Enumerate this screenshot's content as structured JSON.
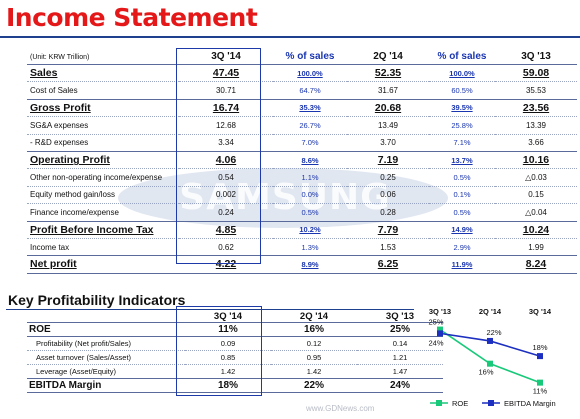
{
  "title": "Income Statement",
  "income_table": {
    "unit": "(Unit: KRW Trillion)",
    "headers": [
      "3Q '14",
      "% of sales",
      "2Q '14",
      "% of sales",
      "3Q '13"
    ],
    "rows": [
      {
        "label": "Sales",
        "q3_14": "47.45",
        "pct_q3_14": "100.0%",
        "q2_14": "52.35",
        "pct_q2_14": "100.0%",
        "q3_13": "59.08",
        "style": "bold"
      },
      {
        "label": "Cost of Sales",
        "q3_14": "30.71",
        "pct_q3_14": "64.7%",
        "q2_14": "31.67",
        "pct_q2_14": "60.5%",
        "q3_13": "35.53",
        "style": "normal"
      },
      {
        "label": "Gross Profit",
        "q3_14": "16.74",
        "pct_q3_14": "35.3%",
        "q2_14": "20.68",
        "pct_q2_14": "39.5%",
        "q3_13": "23.56",
        "style": "bold"
      },
      {
        "label": "SG&A expenses",
        "q3_14": "12.68",
        "pct_q3_14": "26.7%",
        "q2_14": "13.49",
        "pct_q2_14": "25.8%",
        "q3_13": "13.39",
        "style": "normal"
      },
      {
        "label": "- R&D expenses",
        "q3_14": "3.34",
        "pct_q3_14": "7.0%",
        "q2_14": "3.70",
        "pct_q2_14": "7.1%",
        "q3_13": "3.66",
        "style": "sub"
      },
      {
        "label": "Operating Profit",
        "q3_14": "4.06",
        "pct_q3_14": "8.6%",
        "q2_14": "7.19",
        "pct_q2_14": "13.7%",
        "q3_13": "10.16",
        "style": "bold"
      },
      {
        "label": "Other non-operating income/expense",
        "q3_14": "0.54",
        "pct_q3_14": "1.1%",
        "q2_14": "0.25",
        "pct_q2_14": "0.5%",
        "q3_13": "△0.03",
        "style": "normal"
      },
      {
        "label": "Equity method gain/loss",
        "q3_14": "0.002",
        "pct_q3_14": "0.0%",
        "q2_14": "0.06",
        "pct_q2_14": "0.1%",
        "q3_13": "0.15",
        "style": "normal"
      },
      {
        "label": "Finance income/expense",
        "q3_14": "0.24",
        "pct_q3_14": "0.5%",
        "q2_14": "0.28",
        "pct_q2_14": "0.5%",
        "q3_13": "△0.04",
        "style": "normal"
      },
      {
        "label": "Profit Before Income Tax",
        "q3_14": "4.85",
        "pct_q3_14": "10.2%",
        "q2_14": "7.79",
        "pct_q2_14": "14.9%",
        "q3_13": "10.24",
        "style": "bold"
      },
      {
        "label": "Income tax",
        "q3_14": "0.62",
        "pct_q3_14": "1.3%",
        "q2_14": "1.53",
        "pct_q2_14": "2.9%",
        "q3_13": "1.99",
        "style": "normal"
      },
      {
        "label": "Net profit",
        "q3_14": "4.22",
        "pct_q3_14": "8.9%",
        "q2_14": "6.25",
        "pct_q2_14": "11.9%",
        "q3_13": "8.24",
        "style": "bold"
      }
    ]
  },
  "kpi_section": {
    "title": "Key Profitability Indicators",
    "headers": [
      "3Q '14",
      "2Q '14",
      "3Q '13"
    ],
    "rows": [
      {
        "label": "ROE",
        "q3_14": "11%",
        "q2_14": "16%",
        "q3_13": "25%",
        "style": "bold"
      },
      {
        "label": "Profitability (Net profit/Sales)",
        "q3_14": "0.09",
        "q2_14": "0.12",
        "q3_13": "0.14",
        "style": "sub"
      },
      {
        "label": "Asset turnover (Sales/Asset)",
        "q3_14": "0.85",
        "q2_14": "0.95",
        "q3_13": "1.21",
        "style": "sub"
      },
      {
        "label": "Leverage (Asset/Equity)",
        "q3_14": "1.42",
        "q2_14": "1.42",
        "q3_13": "1.47",
        "style": "sub"
      },
      {
        "label": "EBITDA Margin",
        "q3_14": "18%",
        "q2_14": "22%",
        "q3_13": "24%",
        "style": "bold"
      }
    ]
  },
  "chart_data": {
    "type": "line",
    "categories": [
      "3Q '13",
      "2Q '14",
      "3Q '14"
    ],
    "series": [
      {
        "name": "ROE",
        "values": [
          25,
          16,
          11
        ],
        "labels": [
          "25%",
          "16%",
          "11%"
        ],
        "color": "#19c97a"
      },
      {
        "name": "EBITDA Margin",
        "values": [
          24,
          22,
          18
        ],
        "labels": [
          "24%",
          "22%",
          "18%"
        ],
        "color": "#1c2fc0"
      }
    ],
    "legend_position": "bottom"
  },
  "watermark": "SAMSUNG",
  "footer": "www.GDNews.com",
  "colors": {
    "title": "#e41818",
    "accent": "#1f3f8f",
    "pct_text": "#1a35b0"
  }
}
